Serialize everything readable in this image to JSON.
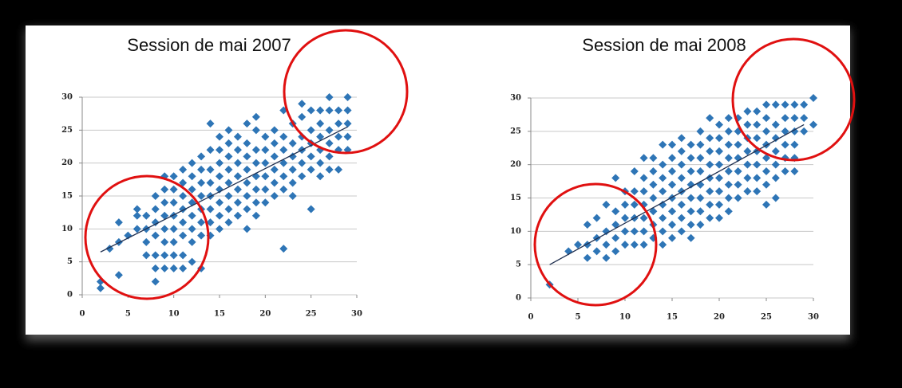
{
  "chart_data": [
    {
      "type": "scatter",
      "title": "Session de mai 2007",
      "color": "#2e75b6",
      "grid": true,
      "xlim": [
        0,
        30
      ],
      "ylim": [
        0,
        30
      ],
      "xticks": [
        0,
        5,
        10,
        15,
        20,
        25,
        30
      ],
      "yticks": [
        0,
        5,
        10,
        15,
        20,
        25,
        30
      ],
      "x": [
        2,
        2,
        3,
        4,
        4,
        4,
        5,
        6,
        6,
        6,
        7,
        7,
        7,
        7,
        8,
        8,
        8,
        8,
        8,
        8,
        8,
        9,
        9,
        9,
        9,
        9,
        9,
        9,
        9,
        10,
        10,
        10,
        10,
        10,
        10,
        10,
        10,
        11,
        11,
        11,
        11,
        11,
        11,
        11,
        11,
        12,
        12,
        12,
        12,
        12,
        12,
        12,
        12,
        13,
        13,
        13,
        13,
        13,
        13,
        13,
        13,
        14,
        14,
        14,
        14,
        14,
        14,
        14,
        14,
        15,
        15,
        15,
        15,
        15,
        15,
        15,
        15,
        16,
        16,
        16,
        16,
        16,
        16,
        16,
        16,
        17,
        17,
        17,
        17,
        17,
        17,
        17,
        18,
        18,
        18,
        18,
        18,
        18,
        18,
        18,
        19,
        19,
        19,
        19,
        19,
        19,
        19,
        19,
        20,
        20,
        20,
        20,
        20,
        20,
        21,
        21,
        21,
        21,
        21,
        21,
        22,
        22,
        22,
        22,
        22,
        22,
        22,
        23,
        23,
        23,
        23,
        23,
        23,
        24,
        24,
        24,
        24,
        24,
        24,
        25,
        25,
        25,
        25,
        25,
        25,
        26,
        26,
        26,
        26,
        26,
        26,
        27,
        27,
        27,
        27,
        27,
        27,
        28,
        28,
        28,
        28,
        28,
        29,
        29,
        29,
        29,
        29
      ],
      "values": [
        1,
        2,
        7,
        3,
        8,
        11,
        9,
        10,
        12,
        13,
        6,
        8,
        10,
        12,
        2,
        4,
        6,
        9,
        11,
        13,
        15,
        4,
        6,
        8,
        10,
        12,
        14,
        16,
        18,
        4,
        6,
        8,
        10,
        12,
        14,
        16,
        18,
        4,
        6,
        9,
        11,
        13,
        15,
        17,
        19,
        5,
        8,
        10,
        12,
        14,
        16,
        18,
        20,
        4,
        9,
        11,
        13,
        15,
        17,
        19,
        21,
        9,
        11,
        13,
        15,
        17,
        19,
        22,
        26,
        10,
        12,
        14,
        16,
        18,
        20,
        22,
        24,
        11,
        13,
        15,
        17,
        19,
        21,
        23,
        25,
        12,
        14,
        16,
        18,
        20,
        22,
        24,
        10,
        13,
        15,
        17,
        19,
        21,
        23,
        26,
        12,
        14,
        16,
        18,
        20,
        22,
        25,
        27,
        14,
        16,
        18,
        20,
        22,
        24,
        15,
        17,
        19,
        21,
        23,
        25,
        7,
        16,
        18,
        20,
        22,
        24,
        28,
        15,
        17,
        19,
        21,
        23,
        26,
        18,
        20,
        22,
        24,
        27,
        29,
        13,
        19,
        21,
        23,
        25,
        28,
        18,
        20,
        22,
        24,
        26,
        28,
        19,
        21,
        23,
        25,
        28,
        30,
        19,
        22,
        24,
        26,
        28,
        22,
        24,
        26,
        28,
        30
      ],
      "trendline": {
        "x": [
          2,
          29
        ],
        "values": [
          6.5,
          25.5
        ]
      }
    },
    {
      "type": "scatter",
      "title": "Session de mai 2008",
      "color": "#2e75b6",
      "grid": true,
      "xlim": [
        0,
        30
      ],
      "ylim": [
        0,
        30
      ],
      "xticks": [
        0,
        5,
        10,
        15,
        20,
        25,
        30
      ],
      "yticks": [
        0,
        5,
        10,
        15,
        20,
        25,
        30
      ],
      "x": [
        2,
        4,
        5,
        6,
        6,
        6,
        7,
        7,
        7,
        8,
        8,
        8,
        8,
        9,
        9,
        9,
        9,
        9,
        10,
        10,
        10,
        10,
        10,
        11,
        11,
        11,
        11,
        11,
        11,
        12,
        12,
        12,
        12,
        12,
        12,
        12,
        13,
        13,
        13,
        13,
        13,
        13,
        13,
        14,
        14,
        14,
        14,
        14,
        14,
        14,
        14,
        15,
        15,
        15,
        15,
        15,
        15,
        15,
        15,
        16,
        16,
        16,
        16,
        16,
        16,
        16,
        16,
        17,
        17,
        17,
        17,
        17,
        17,
        17,
        17,
        18,
        18,
        18,
        18,
        18,
        18,
        18,
        18,
        19,
        19,
        19,
        19,
        19,
        19,
        19,
        19,
        20,
        20,
        20,
        20,
        20,
        20,
        20,
        20,
        21,
        21,
        21,
        21,
        21,
        21,
        21,
        21,
        22,
        22,
        22,
        22,
        22,
        22,
        22,
        23,
        23,
        23,
        23,
        23,
        23,
        23,
        24,
        24,
        24,
        24,
        24,
        24,
        24,
        25,
        25,
        25,
        25,
        25,
        25,
        25,
        25,
        26,
        26,
        26,
        26,
        26,
        26,
        26,
        27,
        27,
        27,
        27,
        27,
        27,
        28,
        28,
        28,
        28,
        28,
        28,
        29,
        29,
        29,
        30,
        30
      ],
      "values": [
        2,
        7,
        8,
        6,
        8,
        11,
        7,
        9,
        12,
        6,
        8,
        10,
        14,
        7,
        9,
        11,
        13,
        18,
        8,
        10,
        12,
        14,
        16,
        8,
        10,
        12,
        14,
        16,
        19,
        8,
        10,
        12,
        14,
        16,
        18,
        21,
        9,
        11,
        13,
        15,
        17,
        19,
        21,
        8,
        10,
        12,
        14,
        16,
        18,
        20,
        23,
        9,
        11,
        13,
        15,
        17,
        19,
        21,
        23,
        10,
        12,
        14,
        16,
        18,
        20,
        22,
        24,
        9,
        11,
        13,
        15,
        17,
        19,
        21,
        23,
        11,
        13,
        15,
        17,
        19,
        21,
        23,
        25,
        12,
        14,
        16,
        18,
        20,
        22,
        24,
        27,
        12,
        14,
        16,
        18,
        20,
        22,
        24,
        26,
        13,
        15,
        17,
        19,
        21,
        23,
        25,
        27,
        15,
        17,
        19,
        21,
        23,
        25,
        27,
        16,
        18,
        20,
        22,
        24,
        26,
        28,
        16,
        18,
        20,
        22,
        24,
        26,
        28,
        14,
        17,
        19,
        21,
        23,
        25,
        27,
        29,
        15,
        18,
        20,
        22,
        24,
        26,
        29,
        19,
        21,
        23,
        25,
        27,
        29,
        19,
        21,
        23,
        25,
        27,
        29,
        25,
        27,
        29,
        26,
        30
      ],
      "trendline": {
        "x": [
          2,
          29
        ],
        "values": [
          5,
          26
        ]
      }
    }
  ]
}
